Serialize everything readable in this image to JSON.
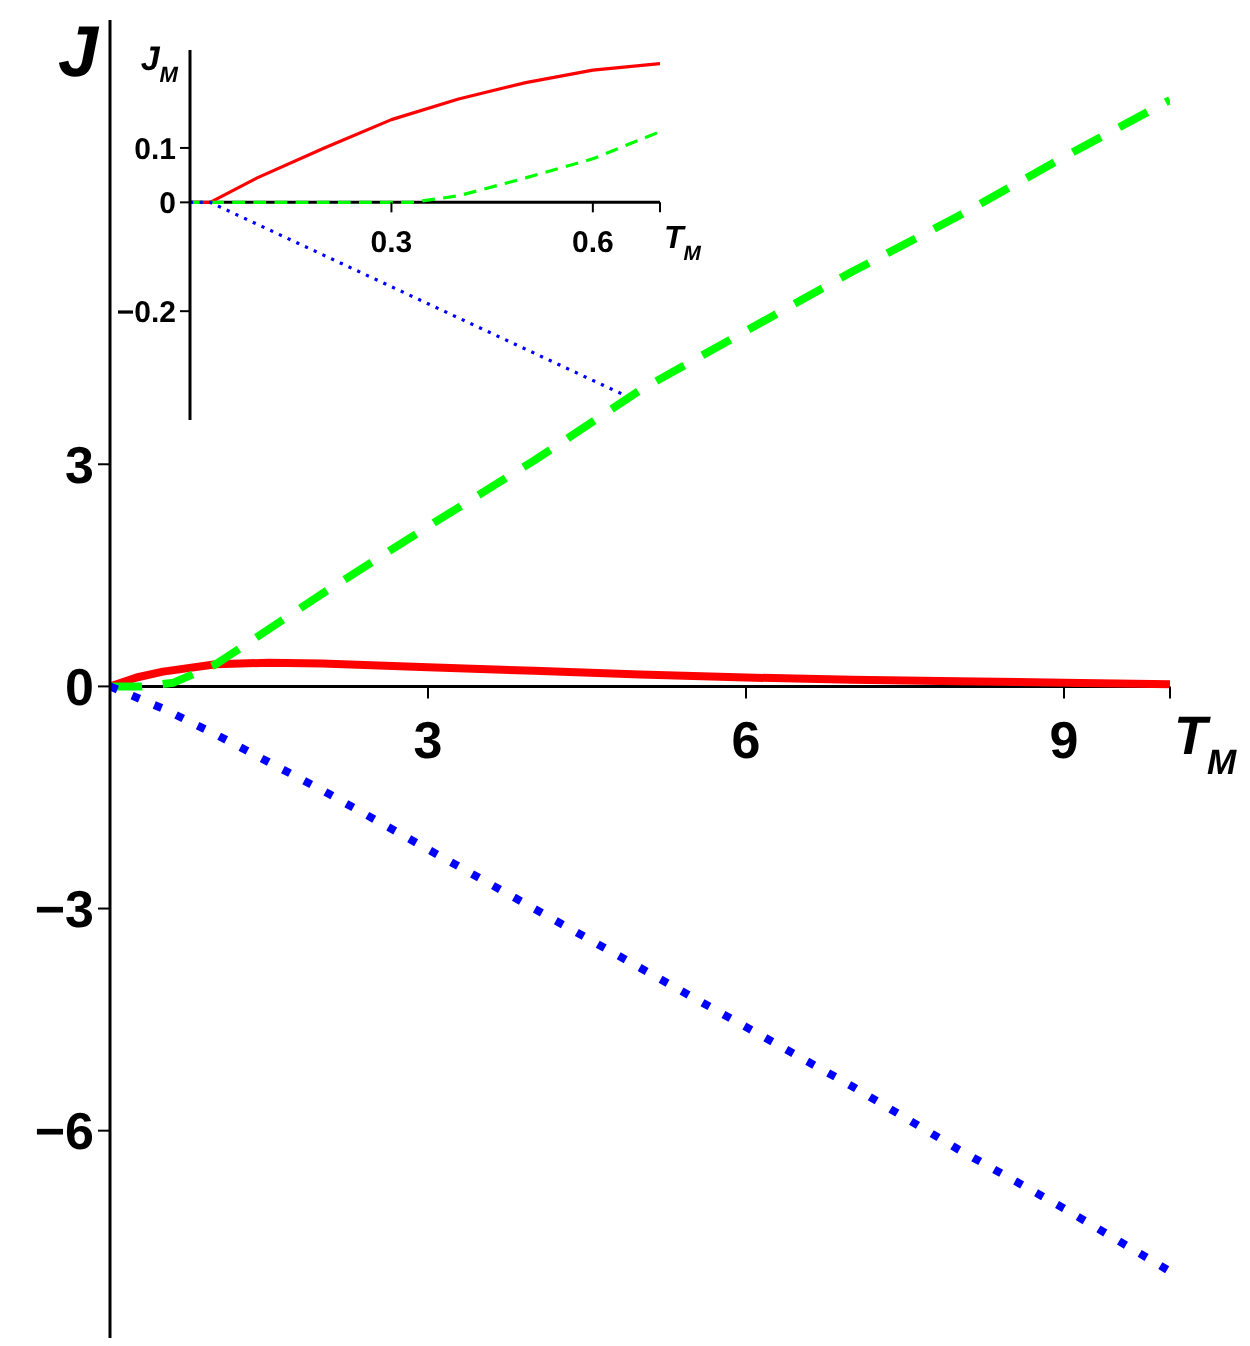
{
  "chart_data": [
    {
      "type": "line",
      "xlabel": "T$_{M}$",
      "ylabel": "J",
      "xlim": [
        0,
        10
      ],
      "xticks": [
        3,
        6,
        9,
        {
          "value": 10,
          "label": null
        }
      ],
      "ylim": [
        -8.8,
        9
      ],
      "yticks": [
        -6,
        -3,
        0,
        3
      ],
      "grid": false,
      "legend": false,
      "marker": "none",
      "series": [
        {
          "color": "#ff0000",
          "line_style": "solid",
          "x": [
            0,
            0.25,
            0.5,
            1,
            1.5,
            2,
            3,
            4,
            5,
            6,
            7,
            8,
            9,
            10
          ],
          "values": [
            0,
            0.12,
            0.2,
            0.3,
            0.32,
            0.31,
            0.26,
            0.21,
            0.16,
            0.12,
            0.09,
            0.07,
            0.05,
            0.03
          ]
        },
        {
          "color": "#00ff00",
          "line_style": "dashed",
          "x": [
            0,
            0.3,
            0.6,
            1,
            2,
            3,
            4,
            5,
            6,
            7,
            8,
            9,
            10
          ],
          "values": [
            0,
            0,
            0.05,
            0.3,
            1.25,
            2.16,
            3.05,
            4,
            4.8,
            5.6,
            6.35,
            7.15,
            7.92
          ]
        },
        {
          "color": "#0000ff",
          "line_style": "dotted",
          "x": [
            0,
            0.5,
            1,
            2,
            3,
            4,
            5,
            6,
            7,
            8,
            9,
            10
          ],
          "values": [
            0,
            -0.3,
            -0.65,
            -1.4,
            -2.2,
            -3,
            -3.8,
            -4.6,
            -5.4,
            -6.25,
            -7.05,
            -7.9
          ]
        }
      ]
    },
    {
      "type": "line",
      "xlabel": "T$_{M}$",
      "ylabel": "J$_{M}$",
      "xlim": [
        0,
        0.7
      ],
      "xticks": [
        0.3,
        0.6,
        {
          "value": 0.7,
          "label": null
        }
      ],
      "ylim": [
        -0.4,
        0.28
      ],
      "yticks": [
        -0.2,
        0,
        0.1
      ],
      "grid": false,
      "legend": false,
      "marker": "none",
      "series": [
        {
          "color": "#ff0000",
          "line_style": "solid",
          "x": [
            0,
            0.03,
            0.1,
            0.2,
            0.3,
            0.4,
            0.5,
            0.6,
            0.7
          ],
          "values": [
            0,
            0,
            0.045,
            0.1,
            0.152,
            0.19,
            0.22,
            0.243,
            0.255
          ]
        },
        {
          "color": "#00ff00",
          "line_style": "dashed",
          "x": [
            0,
            0.33,
            0.4,
            0.5,
            0.6,
            0.7
          ],
          "values": [
            0,
            0,
            0.012,
            0.045,
            0.08,
            0.13
          ]
        },
        {
          "color": "#0000ff",
          "line_style": "dotted",
          "x": [
            0,
            0.03,
            0.65
          ],
          "values": [
            0,
            0,
            -0.356
          ]
        }
      ]
    }
  ]
}
